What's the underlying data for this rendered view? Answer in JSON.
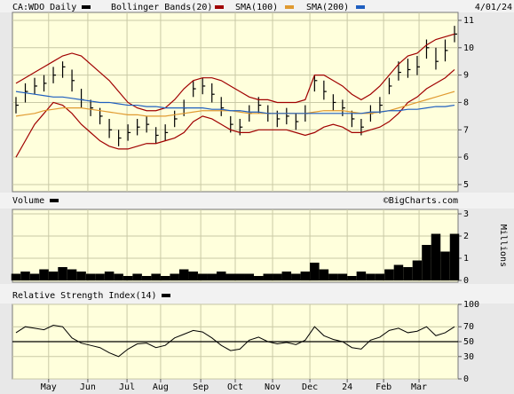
{
  "chart_data": [
    {
      "type": "ohlc",
      "name": "CA:WDO Daily",
      "color": "#000000",
      "date": "4/01/24",
      "close": [
        7.9,
        8.4,
        8.6,
        8.7,
        9.0,
        9.3,
        8.8,
        8.1,
        7.8,
        7.5,
        7.0,
        6.7,
        6.9,
        7.1,
        7.2,
        6.8,
        6.9,
        7.4,
        7.8,
        8.5,
        8.6,
        8.3,
        7.8,
        7.2,
        7.1,
        7.6,
        7.9,
        7.6,
        7.4,
        7.5,
        7.3,
        7.6,
        8.8,
        8.4,
        8.0,
        7.8,
        7.4,
        7.1,
        7.6,
        7.9,
        8.6,
        9.1,
        9.2,
        9.3,
        10.0,
        9.5,
        9.9,
        10.5
      ],
      "high": [
        8.2,
        8.7,
        8.9,
        9.0,
        9.3,
        9.5,
        9.2,
        8.5,
        8.1,
        7.8,
        7.4,
        7.0,
        7.2,
        7.4,
        7.5,
        7.1,
        7.2,
        7.7,
        8.1,
        8.8,
        8.9,
        8.7,
        8.2,
        7.5,
        7.4,
        7.9,
        8.2,
        7.9,
        7.7,
        7.8,
        7.6,
        7.9,
        9.0,
        8.8,
        8.3,
        8.1,
        7.7,
        7.4,
        7.9,
        8.2,
        8.9,
        9.5,
        9.6,
        9.7,
        10.3,
        10.0,
        10.3,
        10.8
      ],
      "low": [
        7.6,
        8.0,
        8.3,
        8.4,
        8.7,
        8.9,
        8.4,
        7.8,
        7.5,
        7.2,
        6.7,
        6.4,
        6.6,
        6.8,
        6.9,
        6.5,
        6.6,
        7.1,
        7.5,
        8.2,
        8.3,
        8.0,
        7.5,
        6.9,
        6.8,
        7.3,
        7.6,
        7.3,
        7.1,
        7.2,
        7.0,
        7.3,
        8.4,
        8.1,
        7.7,
        7.5,
        7.1,
        6.8,
        7.3,
        7.6,
        8.3,
        8.8,
        8.9,
        9.0,
        9.6,
        9.2,
        9.5,
        10.2
      ],
      "bands": {
        "name": "Bollinger Bands(20)",
        "color": "#a00000",
        "upper": [
          8.7,
          8.9,
          9.1,
          9.3,
          9.5,
          9.7,
          9.8,
          9.7,
          9.4,
          9.1,
          8.8,
          8.4,
          8.0,
          7.8,
          7.7,
          7.7,
          7.8,
          8.1,
          8.5,
          8.8,
          8.9,
          8.9,
          8.8,
          8.6,
          8.4,
          8.2,
          8.1,
          8.1,
          8.0,
          8.0,
          8.0,
          8.1,
          9.0,
          9.0,
          8.8,
          8.6,
          8.3,
          8.1,
          8.3,
          8.6,
          9.0,
          9.4,
          9.7,
          9.8,
          10.1,
          10.3,
          10.4,
          10.5
        ],
        "lower": [
          6.0,
          6.6,
          7.2,
          7.6,
          8.0,
          7.9,
          7.6,
          7.2,
          6.9,
          6.6,
          6.4,
          6.3,
          6.3,
          6.4,
          6.5,
          6.5,
          6.6,
          6.7,
          6.9,
          7.3,
          7.5,
          7.4,
          7.2,
          7.0,
          6.9,
          6.9,
          7.0,
          7.0,
          7.0,
          7.0,
          6.9,
          6.8,
          6.9,
          7.1,
          7.2,
          7.1,
          6.9,
          6.9,
          7.0,
          7.1,
          7.3,
          7.6,
          8.0,
          8.2,
          8.5,
          8.7,
          8.9,
          9.2
        ]
      },
      "series": [
        {
          "name": "SMA(100)",
          "color": "#e09a30",
          "values": [
            7.5,
            7.55,
            7.6,
            7.7,
            7.75,
            7.8,
            7.8,
            7.8,
            7.75,
            7.7,
            7.65,
            7.6,
            7.55,
            7.55,
            7.5,
            7.5,
            7.5,
            7.55,
            7.6,
            7.65,
            7.7,
            7.7,
            7.7,
            7.7,
            7.65,
            7.6,
            7.6,
            7.6,
            7.6,
            7.6,
            7.6,
            7.6,
            7.65,
            7.7,
            7.7,
            7.7,
            7.65,
            7.6,
            7.6,
            7.65,
            7.7,
            7.8,
            7.9,
            8.0,
            8.1,
            8.2,
            8.3,
            8.4
          ]
        },
        {
          "name": "SMA(200)",
          "color": "#1f5fc0",
          "values": [
            8.4,
            8.35,
            8.3,
            8.25,
            8.2,
            8.2,
            8.15,
            8.1,
            8.05,
            8.0,
            8.0,
            7.95,
            7.9,
            7.9,
            7.85,
            7.85,
            7.8,
            7.8,
            7.8,
            7.8,
            7.8,
            7.75,
            7.75,
            7.7,
            7.7,
            7.65,
            7.65,
            7.6,
            7.6,
            7.6,
            7.6,
            7.6,
            7.6,
            7.6,
            7.6,
            7.6,
            7.6,
            7.6,
            7.65,
            7.65,
            7.7,
            7.7,
            7.75,
            7.75,
            7.8,
            7.85,
            7.85,
            7.9
          ]
        }
      ],
      "ylim": [
        4.74,
        11.29
      ],
      "yticks": [
        5,
        6,
        7,
        8,
        9,
        10,
        11
      ],
      "grid": true
    },
    {
      "type": "bar",
      "title": "Volume",
      "color": "#000000",
      "source": "©BigCharts.com",
      "ylabel": "Millions",
      "values": [
        0.3,
        0.4,
        0.3,
        0.5,
        0.4,
        0.6,
        0.5,
        0.4,
        0.3,
        0.3,
        0.4,
        0.3,
        0.2,
        0.3,
        0.2,
        0.3,
        0.2,
        0.3,
        0.5,
        0.4,
        0.3,
        0.3,
        0.4,
        0.3,
        0.3,
        0.3,
        0.2,
        0.3,
        0.3,
        0.4,
        0.3,
        0.4,
        0.8,
        0.5,
        0.3,
        0.3,
        0.2,
        0.4,
        0.3,
        0.3,
        0.5,
        0.7,
        0.6,
        0.9,
        1.6,
        2.1,
        1.3,
        2.1
      ],
      "ylim": [
        -0.08,
        3.2
      ],
      "yticks": [
        0,
        1,
        2,
        3
      ],
      "grid": true
    },
    {
      "type": "line",
      "title": "Relative Strength Index(14)",
      "color": "#000000",
      "values": [
        62,
        70,
        68,
        66,
        72,
        70,
        55,
        48,
        45,
        42,
        35,
        30,
        40,
        47,
        48,
        42,
        45,
        55,
        60,
        65,
        63,
        55,
        45,
        38,
        40,
        52,
        56,
        50,
        47,
        49,
        46,
        52,
        70,
        58,
        53,
        50,
        42,
        40,
        52,
        56,
        65,
        68,
        62,
        64,
        70,
        58,
        62,
        70
      ],
      "ylim": [
        0,
        100
      ],
      "yticks": [
        0,
        30,
        50,
        70,
        100
      ],
      "midline": 50,
      "grid": true,
      "xlim": [
        0,
        47
      ],
      "xticks": [
        {
          "value": 3.5,
          "label": "May"
        },
        {
          "value": 7.7,
          "label": "Jun"
        },
        {
          "value": 11.9,
          "label": "Jul"
        },
        {
          "value": 15.5,
          "label": "Aug"
        },
        {
          "value": 19.8,
          "label": "Sep"
        },
        {
          "value": 23.5,
          "label": "Oct"
        },
        {
          "value": 27.5,
          "label": "Nov"
        },
        {
          "value": 31.5,
          "label": "Dec"
        },
        {
          "value": 35.5,
          "label": "24"
        },
        {
          "value": 39.4,
          "label": "Feb"
        },
        {
          "value": 43.2,
          "label": "Mar"
        }
      ]
    }
  ]
}
